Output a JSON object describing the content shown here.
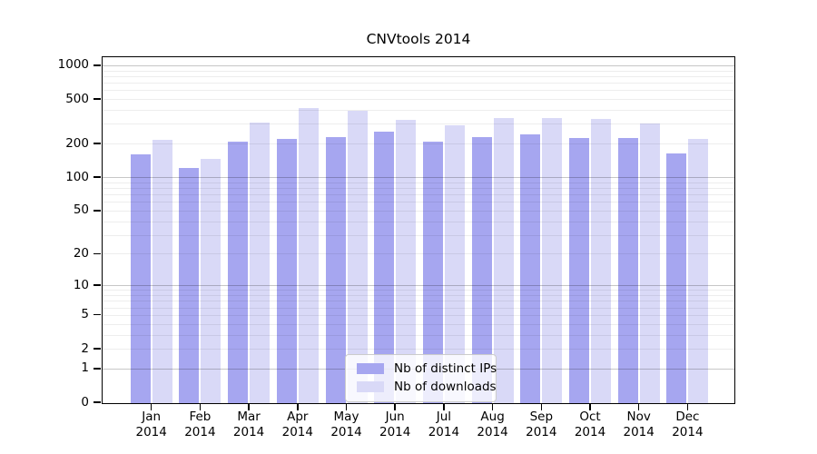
{
  "figure": {
    "title": "CNVtools 2014"
  },
  "chart_data": {
    "type": "bar",
    "title": "CNVtools 2014",
    "categories": [
      "Jan",
      "Feb",
      "Mar",
      "Apr",
      "May",
      "Jun",
      "Jul",
      "Aug",
      "Sep",
      "Oct",
      "Nov",
      "Dec"
    ],
    "year": "2014",
    "series": [
      {
        "name": "Nb of distinct IPs",
        "color": "#a6a6f0",
        "values": [
          160,
          120,
          207,
          221,
          228,
          256,
          210,
          228,
          240,
          225,
          225,
          164
        ]
      },
      {
        "name": "Nb of downloads",
        "color": "#d9d9f7",
        "values": [
          215,
          147,
          310,
          413,
          392,
          326,
          290,
          340,
          338,
          335,
          302,
          219
        ]
      }
    ],
    "xlabel": "",
    "ylabel": "",
    "y_scale": "log10(1+x)",
    "y_tick_values": [
      0,
      1,
      2,
      5,
      10,
      20,
      50,
      100,
      200,
      500,
      1000
    ],
    "y_tick_labels": [
      "0",
      "1",
      "2",
      "5",
      "10",
      "20",
      "50",
      "100",
      "200",
      "500",
      "1000"
    ],
    "ylim": [
      0,
      1200
    ],
    "grid": "horizontal; faint minor log gridlines, darker decade gridlines at 1, 10, 100, 1000",
    "legend_position": "lower center inside plot",
    "colors": {
      "ips_bar": "#a6a6f0",
      "downloads_bar": "#d9d9f7",
      "axis": "#000000",
      "legend_border": "#cccccc",
      "background": "#ffffff"
    }
  },
  "legend": {
    "items": [
      {
        "label": "Nb of distinct IPs"
      },
      {
        "label": "Nb of downloads"
      }
    ]
  }
}
